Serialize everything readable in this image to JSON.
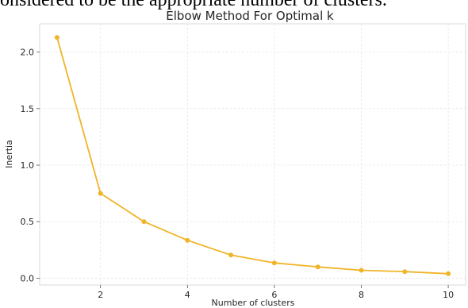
{
  "context": {
    "caption_fragment": "onsidered to be the appropriate number of clusters."
  },
  "chart_data": {
    "type": "line",
    "title": "Elbow Method For Optimal k",
    "xlabel": "Number of clusters",
    "ylabel": "Inertia",
    "xlim": [
      0.6,
      10.4
    ],
    "ylim": [
      -0.06,
      2.25
    ],
    "xticks": [
      2,
      4,
      6,
      8,
      10
    ],
    "yticks": [
      0.0,
      0.5,
      1.0,
      1.5,
      2.0
    ],
    "ytick_labels": [
      "0.0",
      "0.5",
      "1.0",
      "1.5",
      "2.0"
    ],
    "grid": true,
    "series": [
      {
        "x": [
          1,
          2,
          3,
          4,
          5,
          6,
          7,
          8,
          9,
          10
        ],
        "values": [
          2.13,
          0.75,
          0.5,
          0.335,
          0.205,
          0.135,
          0.1,
          0.07,
          0.058,
          0.04
        ],
        "color": "#F0B428",
        "marker": "circle"
      }
    ]
  }
}
